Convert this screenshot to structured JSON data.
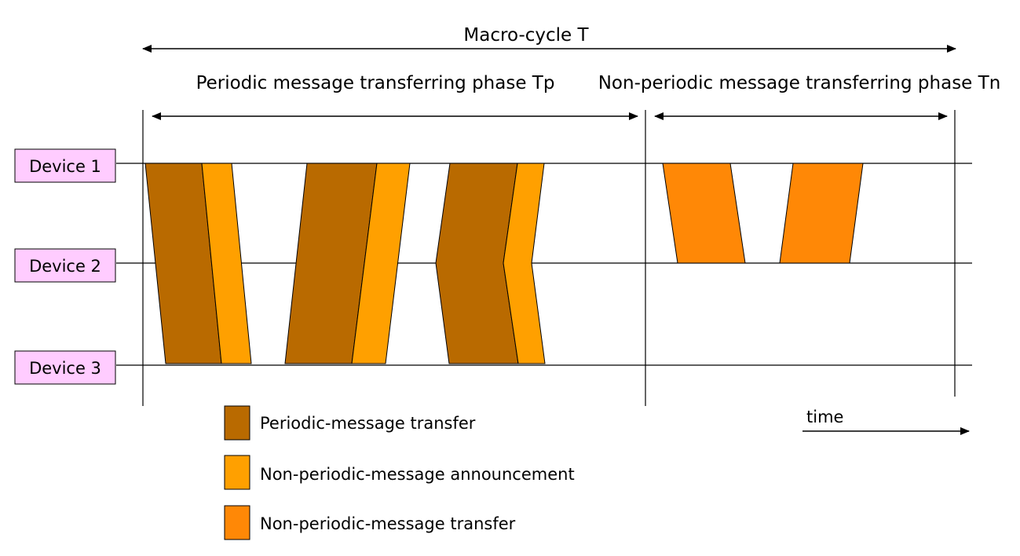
{
  "titles": {
    "macro": "Macro-cycle T",
    "periodic_phase": "Periodic message transferring phase Tp",
    "nonperiodic_phase": "Non-periodic message transferring phase Tn"
  },
  "devices": [
    "Device 1",
    "Device 2",
    "Device 3"
  ],
  "time_label": "time",
  "legend": [
    {
      "label": "Periodic-message transfer",
      "color": "#b96a00"
    },
    {
      "label": "Non-periodic-message announcement",
      "color": "#ffa000"
    },
    {
      "label": "Non-periodic-message transfer",
      "color": "#ff8806"
    }
  ],
  "colors": {
    "periodic_transfer": "#b96a00",
    "nonperiodic_announcement": "#ffa000",
    "nonperiodic_transfer": "#ff8806",
    "device_box_fill": "#ffccff"
  }
}
